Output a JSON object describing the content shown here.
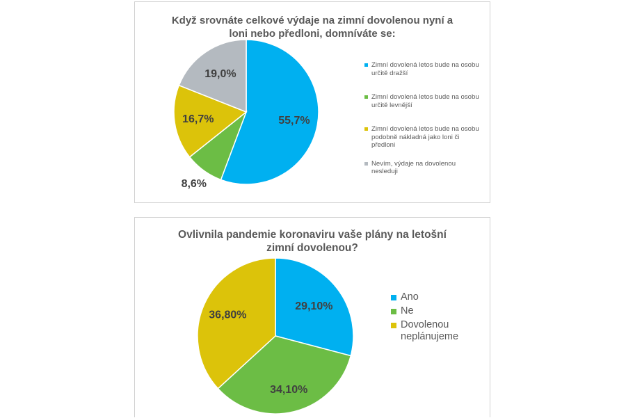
{
  "chart_data": [
    {
      "type": "pie",
      "title": "Když srovnáte celkové výdaje na zimní dovolenou nyní a loni nebo předloni, domníváte se:",
      "unit": "%",
      "slices": [
        {
          "label": "Zimní dovolená letos bude na osobu určitě dražší",
          "value": 55.7,
          "display": "55,7%",
          "color": "#00b0f0"
        },
        {
          "label": "Zimní dovolená letos bude na osobu určitě levnější",
          "value": 8.6,
          "display": "8,6%",
          "color": "#6cbd45"
        },
        {
          "label": "Zimní dovolená letos bude na osobu podobně nákladná jako loni či předloni",
          "value": 16.7,
          "display": "16,7%",
          "color": "#dcc30a"
        },
        {
          "label": "Nevím, výdaje na dovolenou nesleduji",
          "value": 19.0,
          "display": "19,0%",
          "color": "#b4bac0"
        }
      ],
      "legend_position": "right"
    },
    {
      "type": "pie",
      "title": "Ovlivnila pandemie koronaviru vaše plány na letošní zimní dovolenou?",
      "unit": "%",
      "slices": [
        {
          "label": "Ano",
          "value": 29.1,
          "display": "29,10%",
          "color": "#00b0f0"
        },
        {
          "label": "Ne",
          "value": 34.1,
          "display": "34,10%",
          "color": "#6cbd45"
        },
        {
          "label": "Dovolenou neplánujeme",
          "value": 36.8,
          "display": "36,80%",
          "color": "#dcc30a"
        }
      ],
      "legend_position": "right"
    }
  ]
}
